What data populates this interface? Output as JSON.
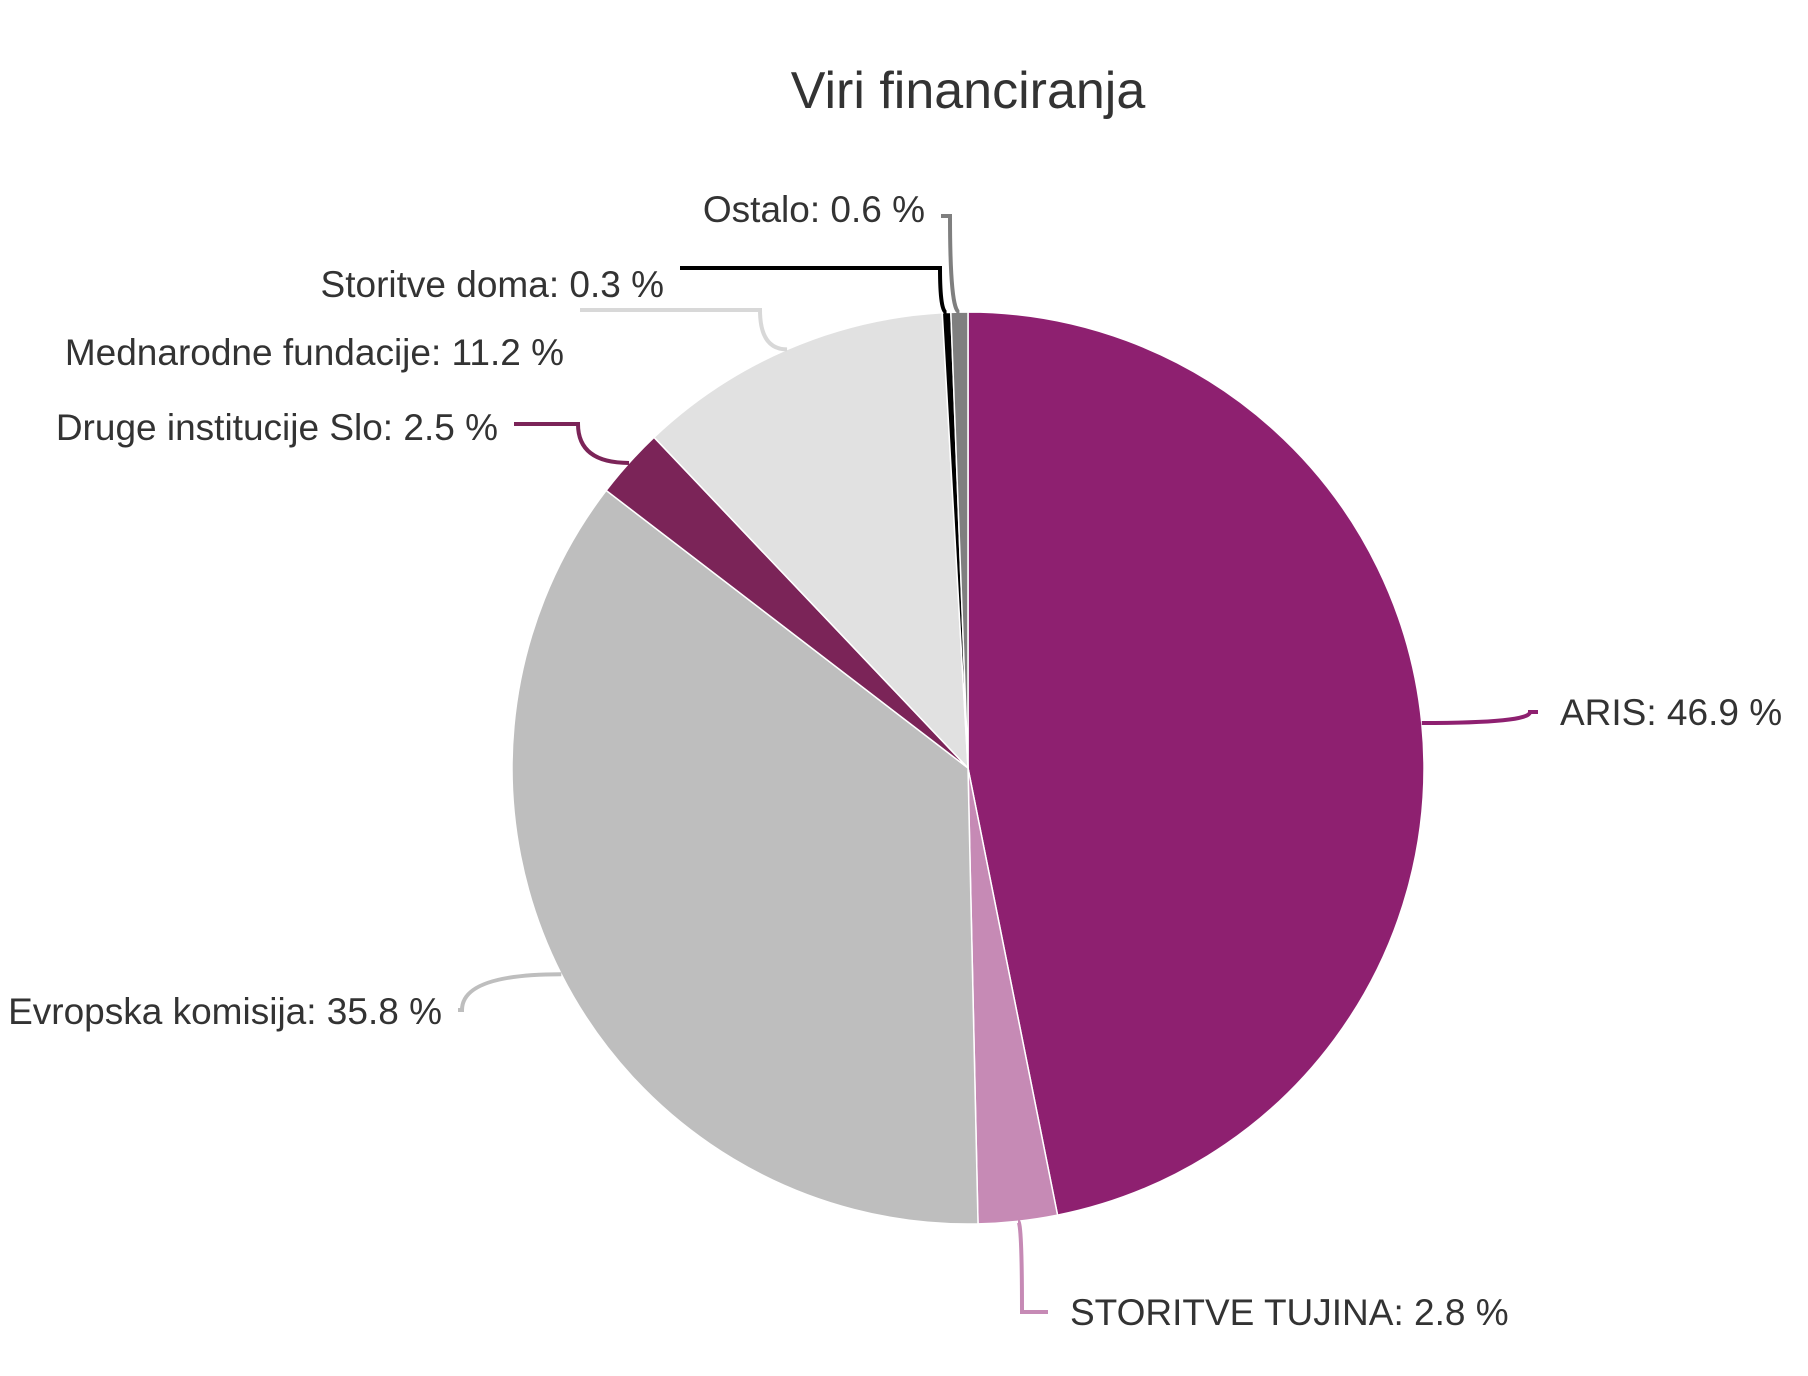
{
  "chart_data": {
    "type": "pie",
    "title": "Viri financiranja",
    "slices": [
      {
        "name": "ARIS",
        "value": 46.9,
        "label": "ARIS: 46.9 %",
        "color": "#8E2070"
      },
      {
        "name": "STORITVE TUJINA",
        "value": 2.8,
        "label": "STORITVE TUJINA: 2.8 %",
        "color": "#C68AB5"
      },
      {
        "name": "Evropska komisija",
        "value": 35.8,
        "label": "Evropska komisija: 35.8 %",
        "color": "#BEBEBE"
      },
      {
        "name": "Druge institucije Slo",
        "value": 2.5,
        "label": "Druge institucije Slo: 2.5 %",
        "color": "#7B2458"
      },
      {
        "name": "Mednarodne fundacije",
        "value": 11.2,
        "label": "Mednarodne fundacije: 11.2 %",
        "color": "#E1E1E1"
      },
      {
        "name": "Storitve doma",
        "value": 0.3,
        "label": "Storitve doma: 0.3 %",
        "color": "#000000"
      },
      {
        "name": "Ostalo",
        "value": 0.6,
        "label": "Ostalo: 0.6 %",
        "color": "#7F7F7F"
      }
    ]
  }
}
